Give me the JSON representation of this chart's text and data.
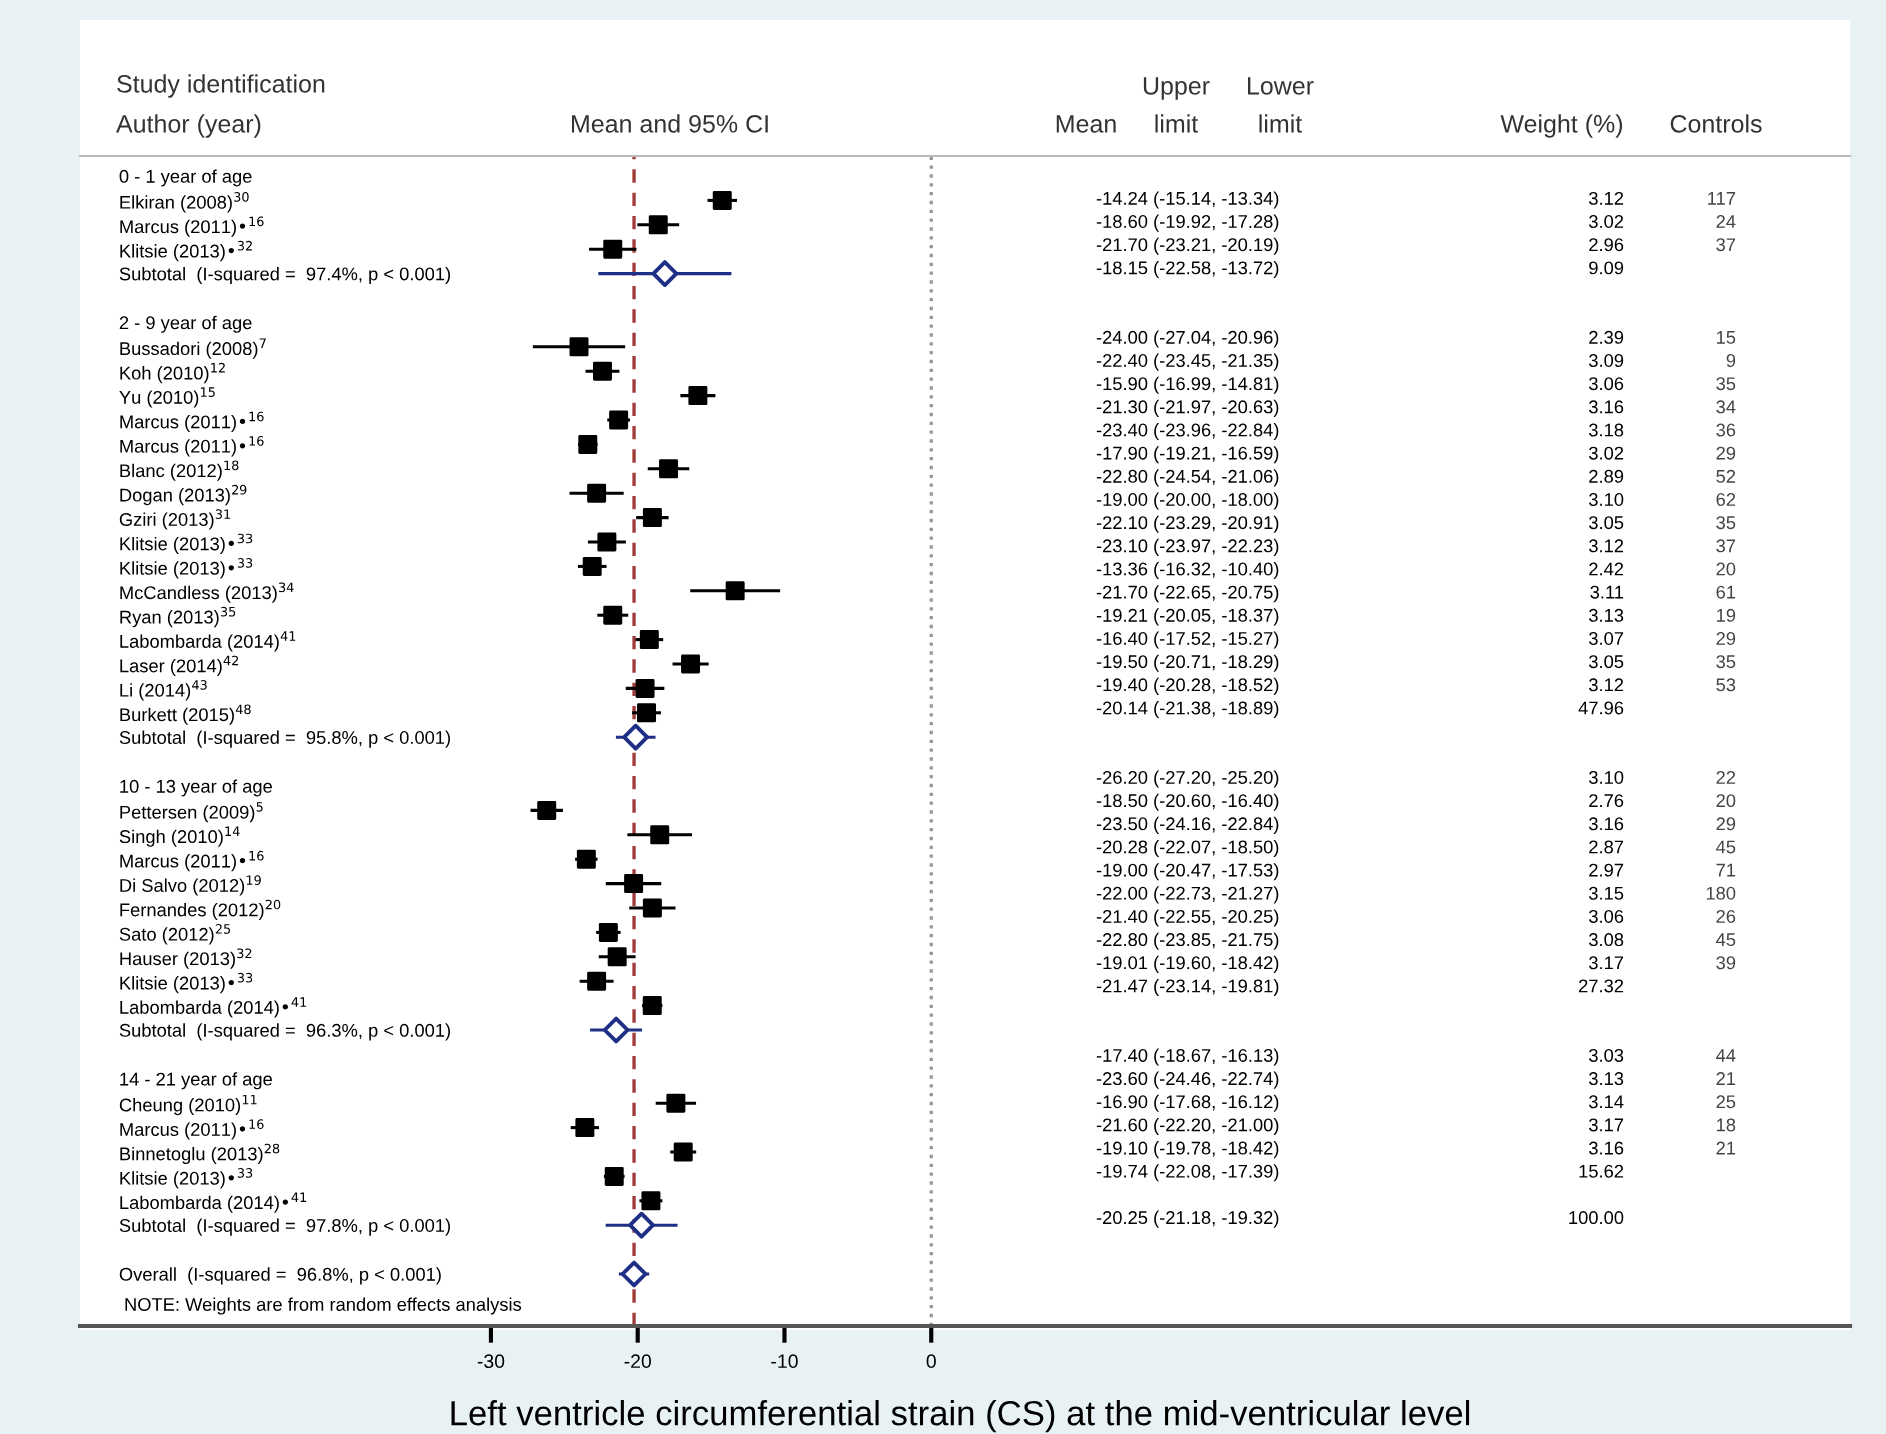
{
  "chart_data": {
    "type": "scatter",
    "orientation": "horizontal",
    "categories": [
      "0 - 1 year of age",
      "Elkiran (2008)$^{30}$",
      "Marcus (2011)•$^{16}$",
      "Klitsie (2013)•$^{32}$",
      "Subtotal  (I-squared =  97.4%, p < 0.001)",
      null,
      "2 - 9 year of age",
      "Bussadori (2008)$^{7}$",
      "Koh (2010)$^{12}$",
      "Yu (2010)$^{15}$",
      "Marcus (2011)•$^{16}$",
      "Marcus (2011)•$^{16}$",
      "Blanc (2012)$^{18}$",
      "Dogan (2013)$^{29}$",
      "Gziri (2013)$^{31}$",
      "Klitsie (2013)•$^{33}$",
      "Klitsie (2013)•$^{33}$",
      "McCandless (2013)$^{34}$",
      "Ryan (2013)$^{35}$",
      "Labombarda (2014)$^{41}$",
      "Laser (2014)$^{42}$",
      "Li (2014)$^{43}$",
      "Burkett (2015)$^{48}$",
      "Subtotal  (I-squared =  95.8%, p < 0.001)",
      null,
      "10 - 13 year of age",
      "Pettersen (2009)$^{5}$",
      "Singh (2010)$^{14}$",
      "Marcus (2011)•$^{16}$",
      "Di Salvo (2012)$^{19}$",
      "Fernandes (2012)$^{20}$",
      "Sato (2012)$^{25}$",
      "Hauser (2013)$^{32}$",
      "Klitsie (2013)•$^{33}$",
      "Labombarda (2014)•$^{41}$",
      "Subtotal  (I-squared =  96.3%, p < 0.001)",
      null,
      "14 - 21 year of age",
      "Cheung (2010)$^{11}$",
      "Marcus (2011)•$^{16}$",
      "Binnetoglu (2013)$^{28}$",
      "Klitsie (2013)•$^{33}$",
      "Labombarda (2014)•$^{41}$",
      "Subtotal  (I-squared =  97.8%, p < 0.001)",
      null,
      "Overall  (I-squared =  96.8%, p < 0.001)"
    ],
    "xlabel": "Left ventricle circumferential strain (CS) at the mid-ventricular level",
    "annotations": [
      "Study identification",
      "Author (year)",
      "Mean and 95% CI",
      "Upper",
      "Lower",
      "Mean",
      "limit",
      "limit",
      "NOTE: Weights are from random effects analysis",
      "Weight (%)",
      "Controls",
      "-14.24 (-15.14, -13.34)\n-18.60 (-19.92, -17.28)\n-21.70 (-23.21, -20.19)\n-18.15 (-22.58, -13.72)\n\n\n-24.00 (-27.04, -20.96)\n-22.40 (-23.45, -21.35)\n-15.90 (-16.99, -14.81)\n-21.30 (-21.97, -20.63)\n-23.40 (-23.96, -22.84)\n-17.90 (-19.21, -16.59)\n-22.80 (-24.54, -21.06)\n-19.00 (-20.00, -18.00)\n-22.10 (-23.29, -20.91)\n-23.10 (-23.97, -22.23)\n-13.36 (-16.32, -10.40)\n-21.70 (-22.65, -20.75)\n-19.21 (-20.05, -18.37)\n-16.40 (-17.52, -15.27)\n-19.50 (-20.71, -18.29)\n-19.40 (-20.28, -18.52)\n-20.14 (-21.38, -18.89)\n\n\n-26.20 (-27.20, -25.20)\n-18.50 (-20.60, -16.40)\n-23.50 (-24.16, -22.84)\n-20.28 (-22.07, -18.50)\n-19.00 (-20.47, -17.53)\n-22.00 (-22.73, -21.27)\n-21.40 (-22.55, -20.25)\n-22.80 (-23.85, -21.75)\n-19.01 (-19.60, -18.42)\n-21.47 (-23.14, -19.81)\n\n\n-17.40 (-18.67, -16.13)\n-23.60 (-24.46, -22.74)\n-16.90 (-17.68, -16.12)\n-21.60 (-22.20, -21.00)\n-19.10 (-19.78, -18.42)\n-19.74 (-22.08, -17.39)\n\n-20.25 (-21.18, -19.32)",
      "3.12\n3.02\n2.96\n9.09\n\n\n2.39\n3.09\n3.06\n3.16\n3.18\n3.02\n2.89\n3.10\n3.05\n3.12\n2.42\n3.11\n3.13\n3.07\n3.05\n3.12\n47.96\n\n\n3.10\n2.76\n3.16\n2.87\n2.97\n3.15\n3.06\n3.08\n3.17\n27.32\n\n\n3.03\n3.13\n3.14\n3.17\n3.16\n15.62\n\n100.00",
      "117\n24\n37\n\n\n\n15\n9\n35\n34\n36\n29\n52\n62\n35\n37\n20\n61\n19\n29\n35\n53\n\n\n\n22\n20\n29\n45\n71\n180\n26\n45\n39\n\n\n\n44\n21\n25\n18\n21"
    ],
    "xlim": [
      -58,
      62.6
    ],
    "xticks": [
      -30,
      -20,
      -10,
      0
    ],
    "ref_lines": [
      {
        "axis": "x",
        "value": -20.25,
        "color": "#a33a3a",
        "line_style": "dashed"
      },
      {
        "axis": "x",
        "value": 0,
        "color": "#999999",
        "line_style": "dotted"
      }
    ],
    "series": [
      {
        "marker": "square",
        "color": "#000000",
        "values": [
          null,
          -14.24,
          -18.6,
          -21.7,
          null,
          null,
          null,
          -24.0,
          -22.4,
          -15.9,
          -21.3,
          -23.4,
          -17.9,
          -22.8,
          -19.0,
          -22.1,
          -23.1,
          -13.36,
          -21.7,
          -19.21,
          -16.4,
          -19.5,
          -19.4,
          null,
          null,
          null,
          -26.2,
          -18.5,
          -23.5,
          -20.28,
          -19.0,
          -22.0,
          -21.4,
          -22.8,
          -19.01,
          null,
          null,
          null,
          -17.4,
          -23.6,
          -16.9,
          -21.6,
          -19.1,
          null,
          null,
          null
        ],
        "errors": [
          null,
          [
            -15.14,
            -13.34
          ],
          [
            -19.92,
            -17.28
          ],
          [
            -23.21,
            -20.19
          ],
          null,
          null,
          null,
          [
            -27.04,
            -20.96
          ],
          [
            -23.45,
            -21.35
          ],
          [
            -16.99,
            -14.81
          ],
          [
            -21.97,
            -20.63
          ],
          [
            -23.96,
            -22.84
          ],
          [
            -19.21,
            -16.59
          ],
          [
            -24.54,
            -21.06
          ],
          [
            -20.0,
            -18.0
          ],
          [
            -23.29,
            -20.91
          ],
          [
            -23.97,
            -22.23
          ],
          [
            -16.32,
            -10.4
          ],
          [
            -22.65,
            -20.75
          ],
          [
            -20.05,
            -18.37
          ],
          [
            -17.52,
            -15.27
          ],
          [
            -20.71,
            -18.29
          ],
          [
            -20.28,
            -18.52
          ],
          null,
          null,
          null,
          [
            -27.2,
            -25.2
          ],
          [
            -20.6,
            -16.4
          ],
          [
            -24.16,
            -22.84
          ],
          [
            -22.07,
            -18.5
          ],
          [
            -20.47,
            -17.53
          ],
          [
            -22.73,
            -21.27
          ],
          [
            -22.55,
            -20.25
          ],
          [
            -23.85,
            -21.75
          ],
          [
            -19.6,
            -18.42
          ],
          null,
          null,
          null,
          [
            -18.67,
            -16.13
          ],
          [
            -24.46,
            -22.74
          ],
          [
            -17.68,
            -16.12
          ],
          [
            -22.2,
            -21.0
          ],
          [
            -19.78,
            -18.42
          ],
          null,
          null,
          null
        ]
      },
      {
        "marker": "diamond",
        "color": "#1f2f86",
        "values": [
          null,
          null,
          null,
          null,
          -18.15,
          null,
          null,
          null,
          null,
          null,
          null,
          null,
          null,
          null,
          null,
          null,
          null,
          null,
          null,
          null,
          null,
          null,
          null,
          -20.14,
          null,
          null,
          null,
          null,
          null,
          null,
          null,
          null,
          null,
          null,
          null,
          -21.47,
          null,
          null,
          null,
          null,
          null,
          null,
          null,
          -19.74,
          null,
          -20.25
        ],
        "errors": [
          null,
          null,
          null,
          null,
          [
            -22.58,
            -13.72
          ],
          null,
          null,
          null,
          null,
          null,
          null,
          null,
          null,
          null,
          null,
          null,
          null,
          null,
          null,
          null,
          null,
          null,
          null,
          [
            -21.38,
            -18.89
          ],
          null,
          null,
          null,
          null,
          null,
          null,
          null,
          null,
          null,
          null,
          null,
          [
            -23.14,
            -19.81
          ],
          null,
          null,
          null,
          null,
          null,
          null,
          null,
          [
            -22.08,
            -17.39
          ],
          null,
          [
            -21.18,
            -19.32
          ]
        ]
      }
    ]
  }
}
